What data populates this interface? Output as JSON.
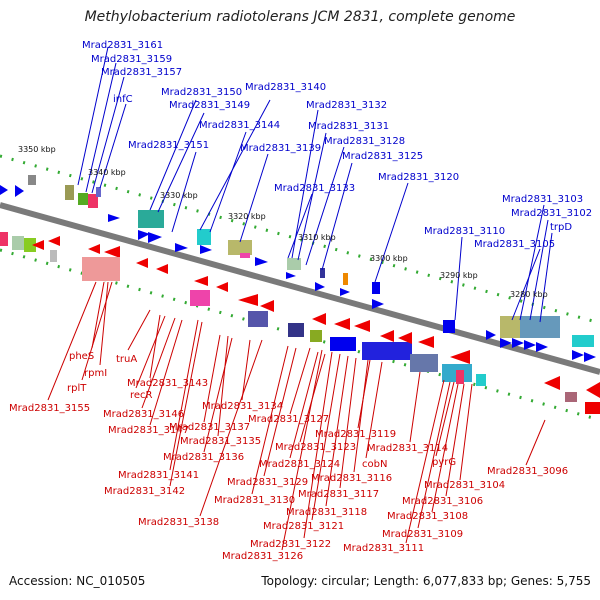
{
  "title": "Methylobacterium radiotolerans JCM 2831, complete genome",
  "footer": {
    "accession": "Accession: NC_010505",
    "summary": "Topology: circular; Length: 6,077,833 bp; Genes: 5,755"
  },
  "kbp_labels": [
    "3350 kbp",
    "3340 kbp",
    "3330 kbp",
    "3320 kbp",
    "3310 kbp",
    "3300 kbp",
    "3290 kbp",
    "3280 kbp"
  ],
  "blue_labels": [
    "Mrad2831_3161",
    "Mrad2831_3159",
    "Mrad2831_3157",
    "infC",
    "Mrad2831_3150",
    "Mrad2831_3149",
    "Mrad2831_3151",
    "Mrad2831_3140",
    "Mrad2831_3144",
    "Mrad2831_3139",
    "Mrad2831_3132",
    "Mrad2831_3131",
    "Mrad2831_3128",
    "Mrad2831_3125",
    "Mrad2831_3133",
    "Mrad2831_3120",
    "Mrad2831_3110",
    "Mrad2831_3105",
    "Mrad2831_3103",
    "Mrad2831_3102",
    "trpD"
  ],
  "red_labels": [
    "pheS",
    "rpmI",
    "rplT",
    "Mrad2831_3155",
    "truA",
    "Mrad2831_3143",
    "recR",
    "Mrad2831_3146",
    "Mrad2831_3147",
    "Mrad2831_3137",
    "Mrad2831_3135",
    "Mrad2831_3136",
    "Mrad2831_3141",
    "Mrad2831_3142",
    "Mrad2831_3134",
    "Mrad2831_3127",
    "Mrad2831_3123",
    "Mrad2831_3124",
    "Mrad2831_3129",
    "Mrad2831_3130",
    "Mrad2831_3138",
    "Mrad2831_3119",
    "Mrad2831_3114",
    "cobN",
    "Mrad2831_3116",
    "Mrad2831_3117",
    "Mrad2831_3118",
    "Mrad2831_3121",
    "Mrad2831_3122",
    "Mrad2831_3126",
    "pyrG",
    "Mrad2831_3104",
    "Mrad2831_3106",
    "Mrad2831_3108",
    "Mrad2831_3109",
    "Mrad2831_3111",
    "Mrad2831_3096"
  ],
  "colors": {
    "forward_gene": "#0000ee",
    "reverse_gene": "#ee0000",
    "backbone": "#777777",
    "ticks": "#22aa22"
  }
}
